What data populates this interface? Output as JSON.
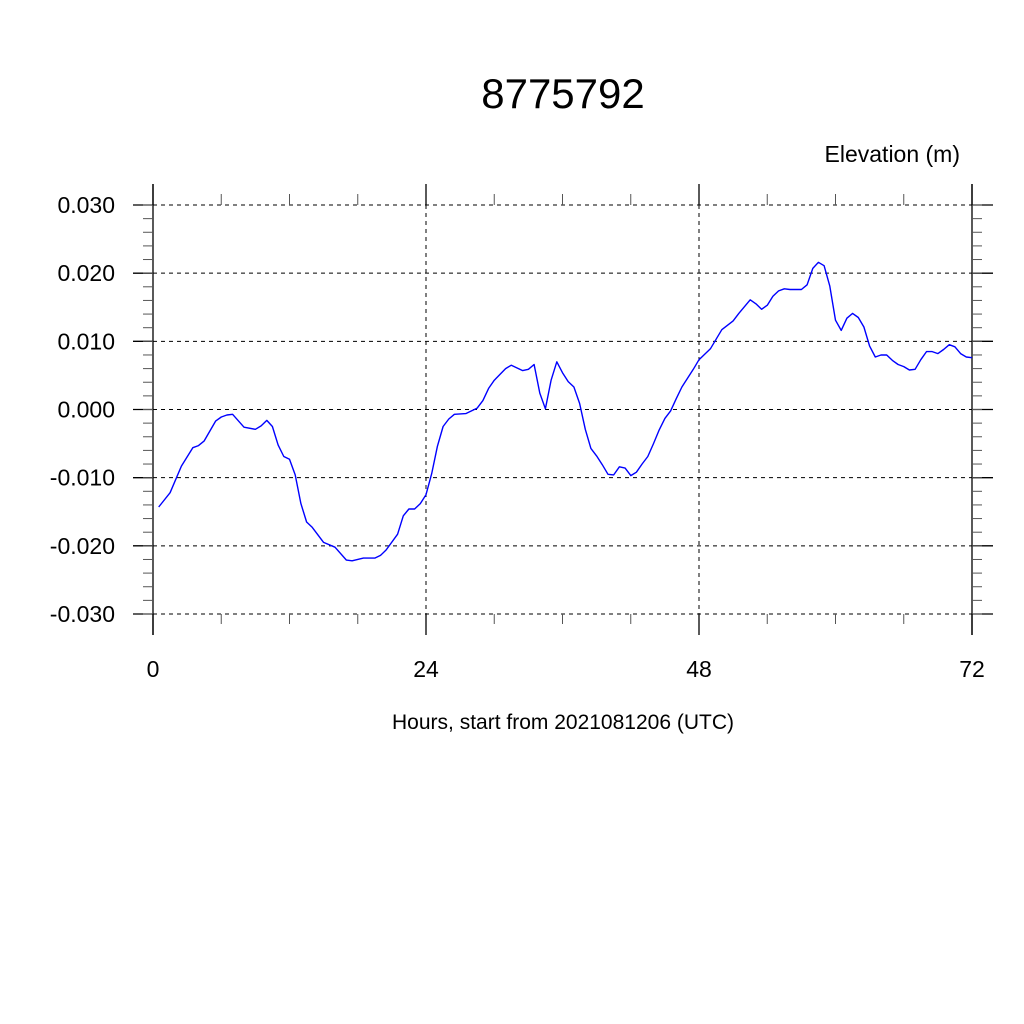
{
  "chart_data": {
    "type": "line",
    "title": "8775792",
    "ylabel": "Elevation (m)",
    "xlabel": "Hours, start from 2021081206 (UTC)",
    "xlim": [
      0,
      72
    ],
    "ylim": [
      -0.03,
      0.03
    ],
    "x_ticks": [
      0,
      24,
      48,
      72
    ],
    "x_tick_labels": [
      "0",
      "24",
      "48",
      "72"
    ],
    "x_minor_step": 6,
    "y_ticks": [
      0.03,
      0.02,
      0.01,
      0.0,
      -0.01,
      -0.02,
      -0.03
    ],
    "y_tick_labels": [
      "0.030",
      "0.020",
      "0.010",
      "0.000",
      "-0.010",
      "-0.020",
      "-0.030"
    ],
    "y_minor_step": 0.002,
    "grid": true,
    "grid_style": "dashed",
    "line_color": "#0000ff",
    "series": [
      {
        "x": [
          0.5,
          1.5,
          2.5,
          3.5,
          4,
          4.5,
          5.5,
          6,
          6.5,
          7,
          8,
          9,
          9.5,
          10,
          10.5,
          11,
          11.5,
          12,
          12.5,
          13,
          13.5,
          14,
          15,
          16,
          17,
          17.5,
          18.5,
          19.5,
          20,
          20.5,
          21.5,
          22,
          22.5,
          23,
          23.5,
          24,
          24.5,
          25,
          25.5,
          26,
          26.5,
          27.5,
          28.5,
          29,
          29.5,
          30,
          31,
          31.5,
          32.5,
          33,
          33.5,
          34,
          34.5,
          35,
          35.5,
          36,
          36.5,
          37,
          37.5,
          38,
          38.5,
          39,
          39.5,
          40,
          40.5,
          41,
          41.5,
          42,
          42.5,
          43,
          43.5,
          44,
          44.5,
          45,
          45.5,
          46,
          46.5,
          47,
          47.5,
          48,
          49,
          50,
          51,
          51.5,
          52.5,
          53,
          53.5,
          54,
          54.5,
          55,
          55.5,
          56,
          57,
          57.5,
          58,
          58.5,
          59,
          59.5,
          60,
          60.5,
          61,
          61.5,
          62,
          62.5,
          63,
          63.5,
          64,
          64.5,
          65,
          65.5,
          66,
          66.5,
          67,
          67.5,
          68,
          68.5,
          69,
          69.5,
          70,
          70.5,
          71,
          71.5,
          72
        ],
        "y": [
          -0.0143,
          -0.0122,
          -0.0083,
          -0.0056,
          -0.0053,
          -0.0046,
          -0.0017,
          -0.0011,
          -0.0008,
          -0.0007,
          -0.0026,
          -0.0029,
          -0.0024,
          -0.0016,
          -0.0025,
          -0.0052,
          -0.0069,
          -0.0073,
          -0.0096,
          -0.0138,
          -0.0165,
          -0.0173,
          -0.0195,
          -0.0202,
          -0.0221,
          -0.0222,
          -0.0218,
          -0.0218,
          -0.0214,
          -0.0206,
          -0.0183,
          -0.0156,
          -0.0146,
          -0.0146,
          -0.0138,
          -0.0125,
          -0.0094,
          -0.0054,
          -0.0025,
          -0.0014,
          -0.0007,
          -0.0006,
          0.0002,
          0.0013,
          0.0031,
          0.0043,
          0.006,
          0.0065,
          0.0057,
          0.0059,
          0.0066,
          0.0024,
          0.0001,
          0.0043,
          0.007,
          0.0054,
          0.0041,
          0.0033,
          0.0009,
          -0.0029,
          -0.0057,
          -0.0068,
          -0.0081,
          -0.0095,
          -0.0096,
          -0.0084,
          -0.0086,
          -0.0097,
          -0.0092,
          -0.008,
          -0.0069,
          -0.005,
          -0.003,
          -0.0013,
          -0.0002,
          0.0016,
          0.0033,
          0.0046,
          0.0059,
          0.0073,
          0.0089,
          0.0117,
          0.013,
          0.0141,
          0.0161,
          0.0155,
          0.0147,
          0.0153,
          0.0166,
          0.0174,
          0.0177,
          0.0176,
          0.0176,
          0.0183,
          0.0207,
          0.0216,
          0.0211,
          0.0181,
          0.0131,
          0.0116,
          0.0134,
          0.0141,
          0.0135,
          0.0121,
          0.0093,
          0.0077,
          0.008,
          0.008,
          0.0072,
          0.0066,
          0.0063,
          0.0058,
          0.0059,
          0.0073,
          0.0085,
          0.0085,
          0.0082,
          0.0088,
          0.0095,
          0.0092,
          0.0082,
          0.0077,
          0.0076
        ]
      }
    ]
  }
}
